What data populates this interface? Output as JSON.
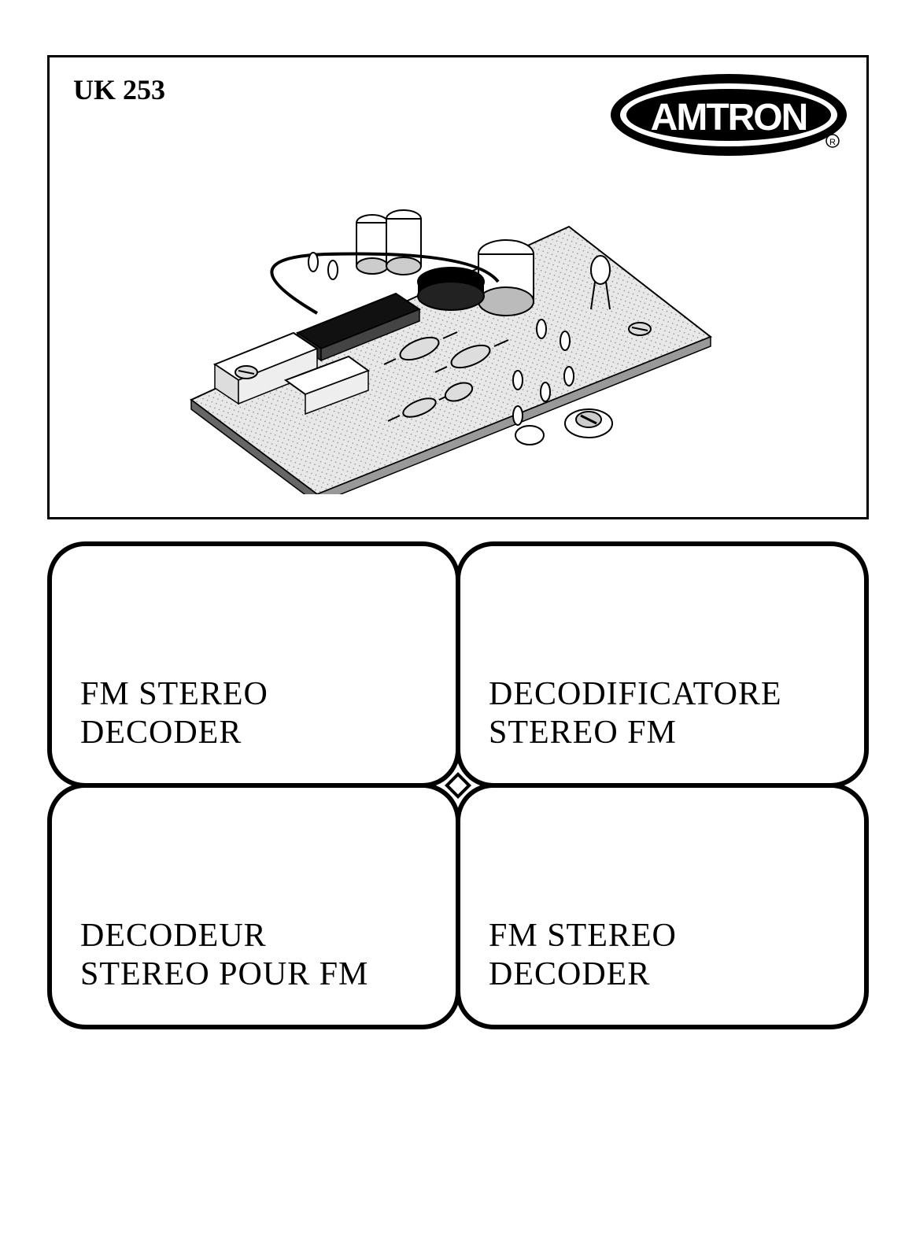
{
  "header": {
    "model": "UK 253",
    "brand": "AMTRON"
  },
  "labels": {
    "top_left": "FM STEREO\nDECODER",
    "top_right": "DECODIFICATORE\nSTEREO FM",
    "bottom_left": "DECODEUR\nSTEREO POUR FM",
    "bottom_right": "FM STEREO\nDECODER"
  },
  "illustration": {
    "description": "circuit-board-drawing",
    "board_fill": "#d8d8d8",
    "board_stroke": "#000000",
    "component_fill": "#ffffff"
  },
  "colors": {
    "page_bg": "#ffffff",
    "ink": "#000000"
  }
}
